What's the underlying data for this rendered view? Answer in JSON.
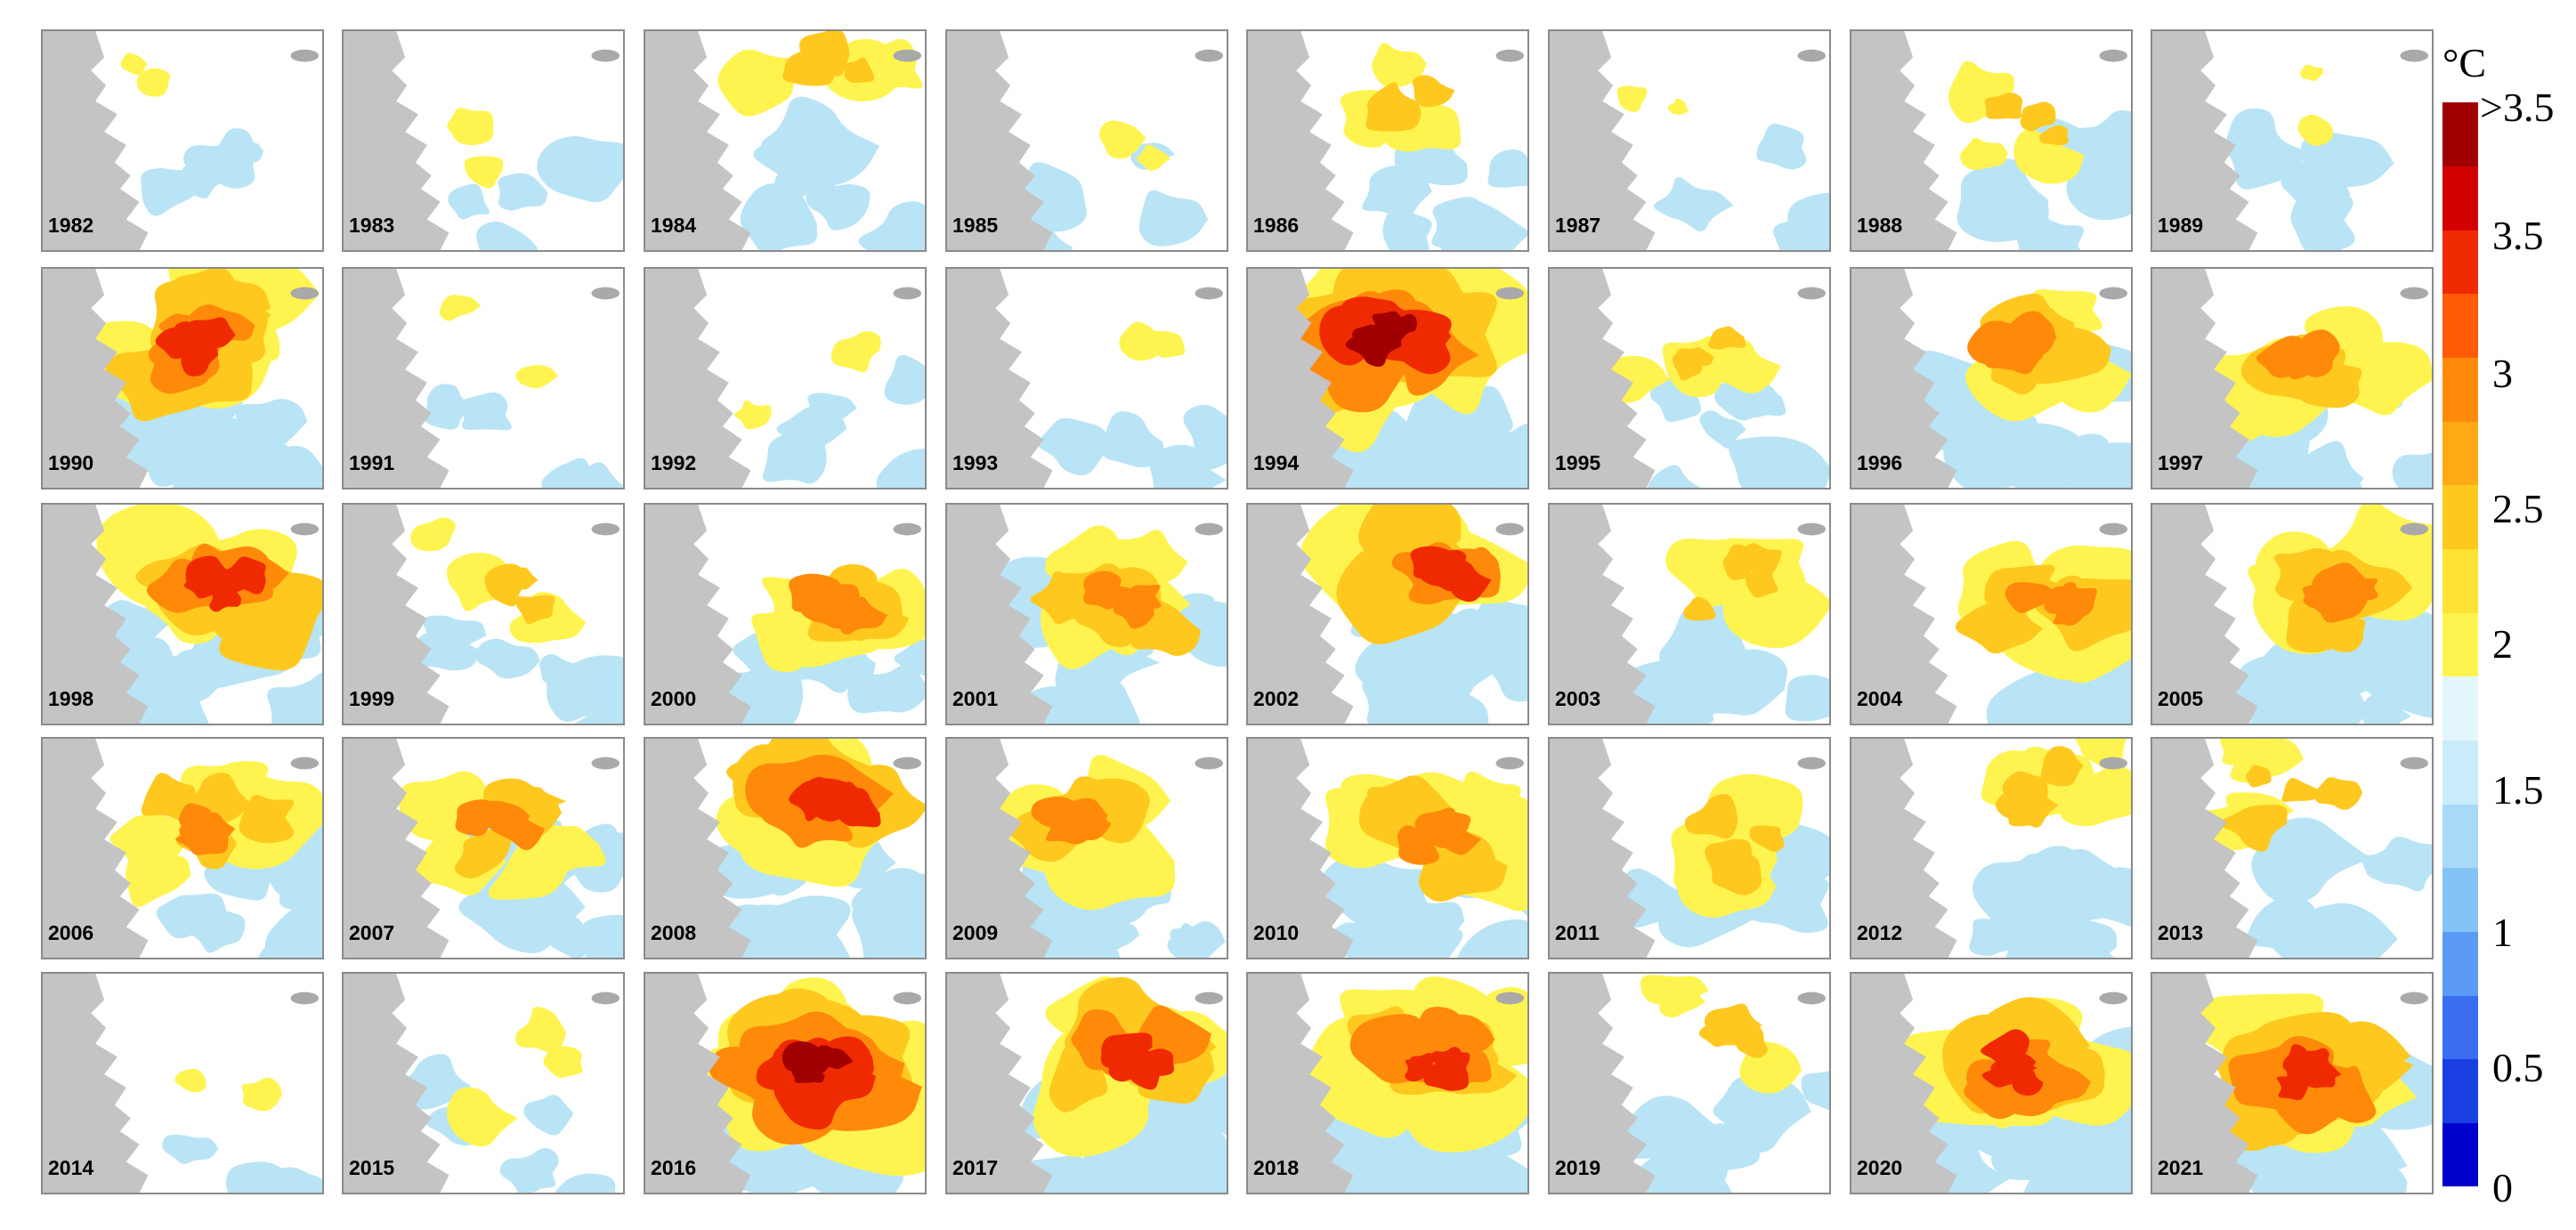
{
  "years": [
    "1982",
    "1983",
    "1984",
    "1985",
    "1986",
    "1987",
    "1988",
    "1989",
    "1990",
    "1991",
    "1992",
    "1993",
    "1994",
    "1995",
    "1996",
    "1997",
    "1998",
    "1999",
    "2000",
    "2001",
    "2002",
    "2003",
    "2004",
    "2005",
    "2006",
    "2007",
    "2008",
    "2009",
    "2010",
    "2011",
    "2012",
    "2013",
    "2014",
    "2015",
    "2016",
    "2017",
    "2018",
    "2019",
    "2020",
    "2021"
  ],
  "intensity": [
    0.02,
    0.12,
    0.35,
    0.12,
    0.35,
    0.05,
    0.3,
    0.02,
    0.7,
    0.12,
    0.18,
    0.1,
    0.95,
    0.3,
    0.65,
    0.55,
    0.7,
    0.3,
    0.55,
    0.6,
    0.72,
    0.4,
    0.6,
    0.6,
    0.5,
    0.5,
    0.75,
    0.55,
    0.6,
    0.4,
    0.45,
    0.4,
    0.1,
    0.2,
    0.9,
    0.7,
    0.7,
    0.35,
    0.75,
    0.8
  ],
  "colorbar": {
    "unit": "°C",
    "ticks": [
      "0",
      "0.5",
      "1",
      "1.5",
      "2",
      "2.5",
      "3",
      "3.5",
      ">3.5"
    ],
    "colors": [
      "#0000cd",
      "#1a3fe0",
      "#3a6df0",
      "#5b9bf5",
      "#84c3f5",
      "#a8daf7",
      "#c8ecf9",
      "#e2f6fb",
      "#fff44f",
      "#ffe234",
      "#ffc81e",
      "#ffaa14",
      "#ff8a0a",
      "#ff5a05",
      "#f02a00",
      "#d40000",
      "#a00000"
    ]
  },
  "colors": {
    "land": "#c4c4c4",
    "cool": "#b9e4f5",
    "warm": [
      "#fff44f",
      "#ffc81e",
      "#ff8a0a",
      "#f02a00",
      "#a00000"
    ]
  }
}
